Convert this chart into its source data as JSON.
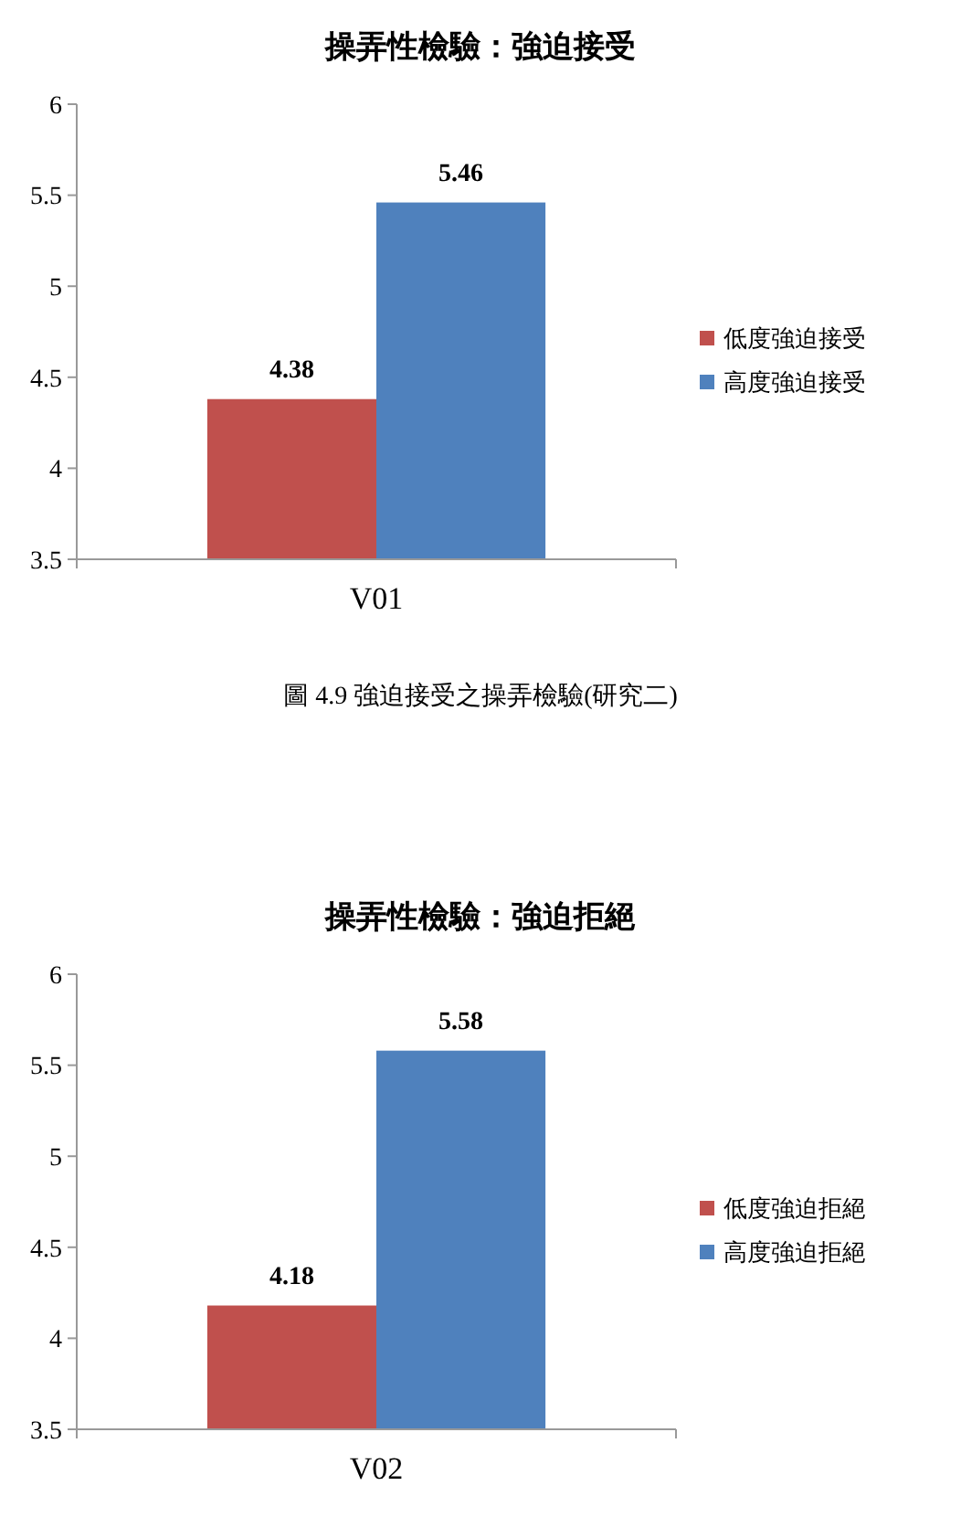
{
  "chart_data": [
    {
      "type": "bar",
      "title": "操弄性檢驗：強迫接受",
      "categories": [
        "V01"
      ],
      "series": [
        {
          "name": "低度強迫接受",
          "color": "#c0504d",
          "values": [
            4.38
          ]
        },
        {
          "name": "高度強迫接受",
          "color": "#4f81bd",
          "values": [
            5.46
          ]
        }
      ],
      "ylim": [
        3.5,
        6
      ],
      "yticks": [
        3.5,
        4,
        4.5,
        5,
        5.5,
        6
      ],
      "data_labels": true,
      "legend": "right",
      "annotations": [
        "圖 4.9  強迫接受之操弄檢驗(研究二)"
      ]
    },
    {
      "type": "bar",
      "title": "操弄性檢驗：強迫拒絕",
      "categories": [
        "V02"
      ],
      "series": [
        {
          "name": "低度強迫拒絕",
          "color": "#c0504d",
          "values": [
            4.18
          ]
        },
        {
          "name": "高度強迫拒絕",
          "color": "#4f81bd",
          "values": [
            5.58
          ]
        }
      ],
      "ylim": [
        3.5,
        6
      ],
      "yticks": [
        3.5,
        4,
        4.5,
        5,
        5.5,
        6
      ],
      "data_labels": true,
      "legend": "right"
    }
  ]
}
